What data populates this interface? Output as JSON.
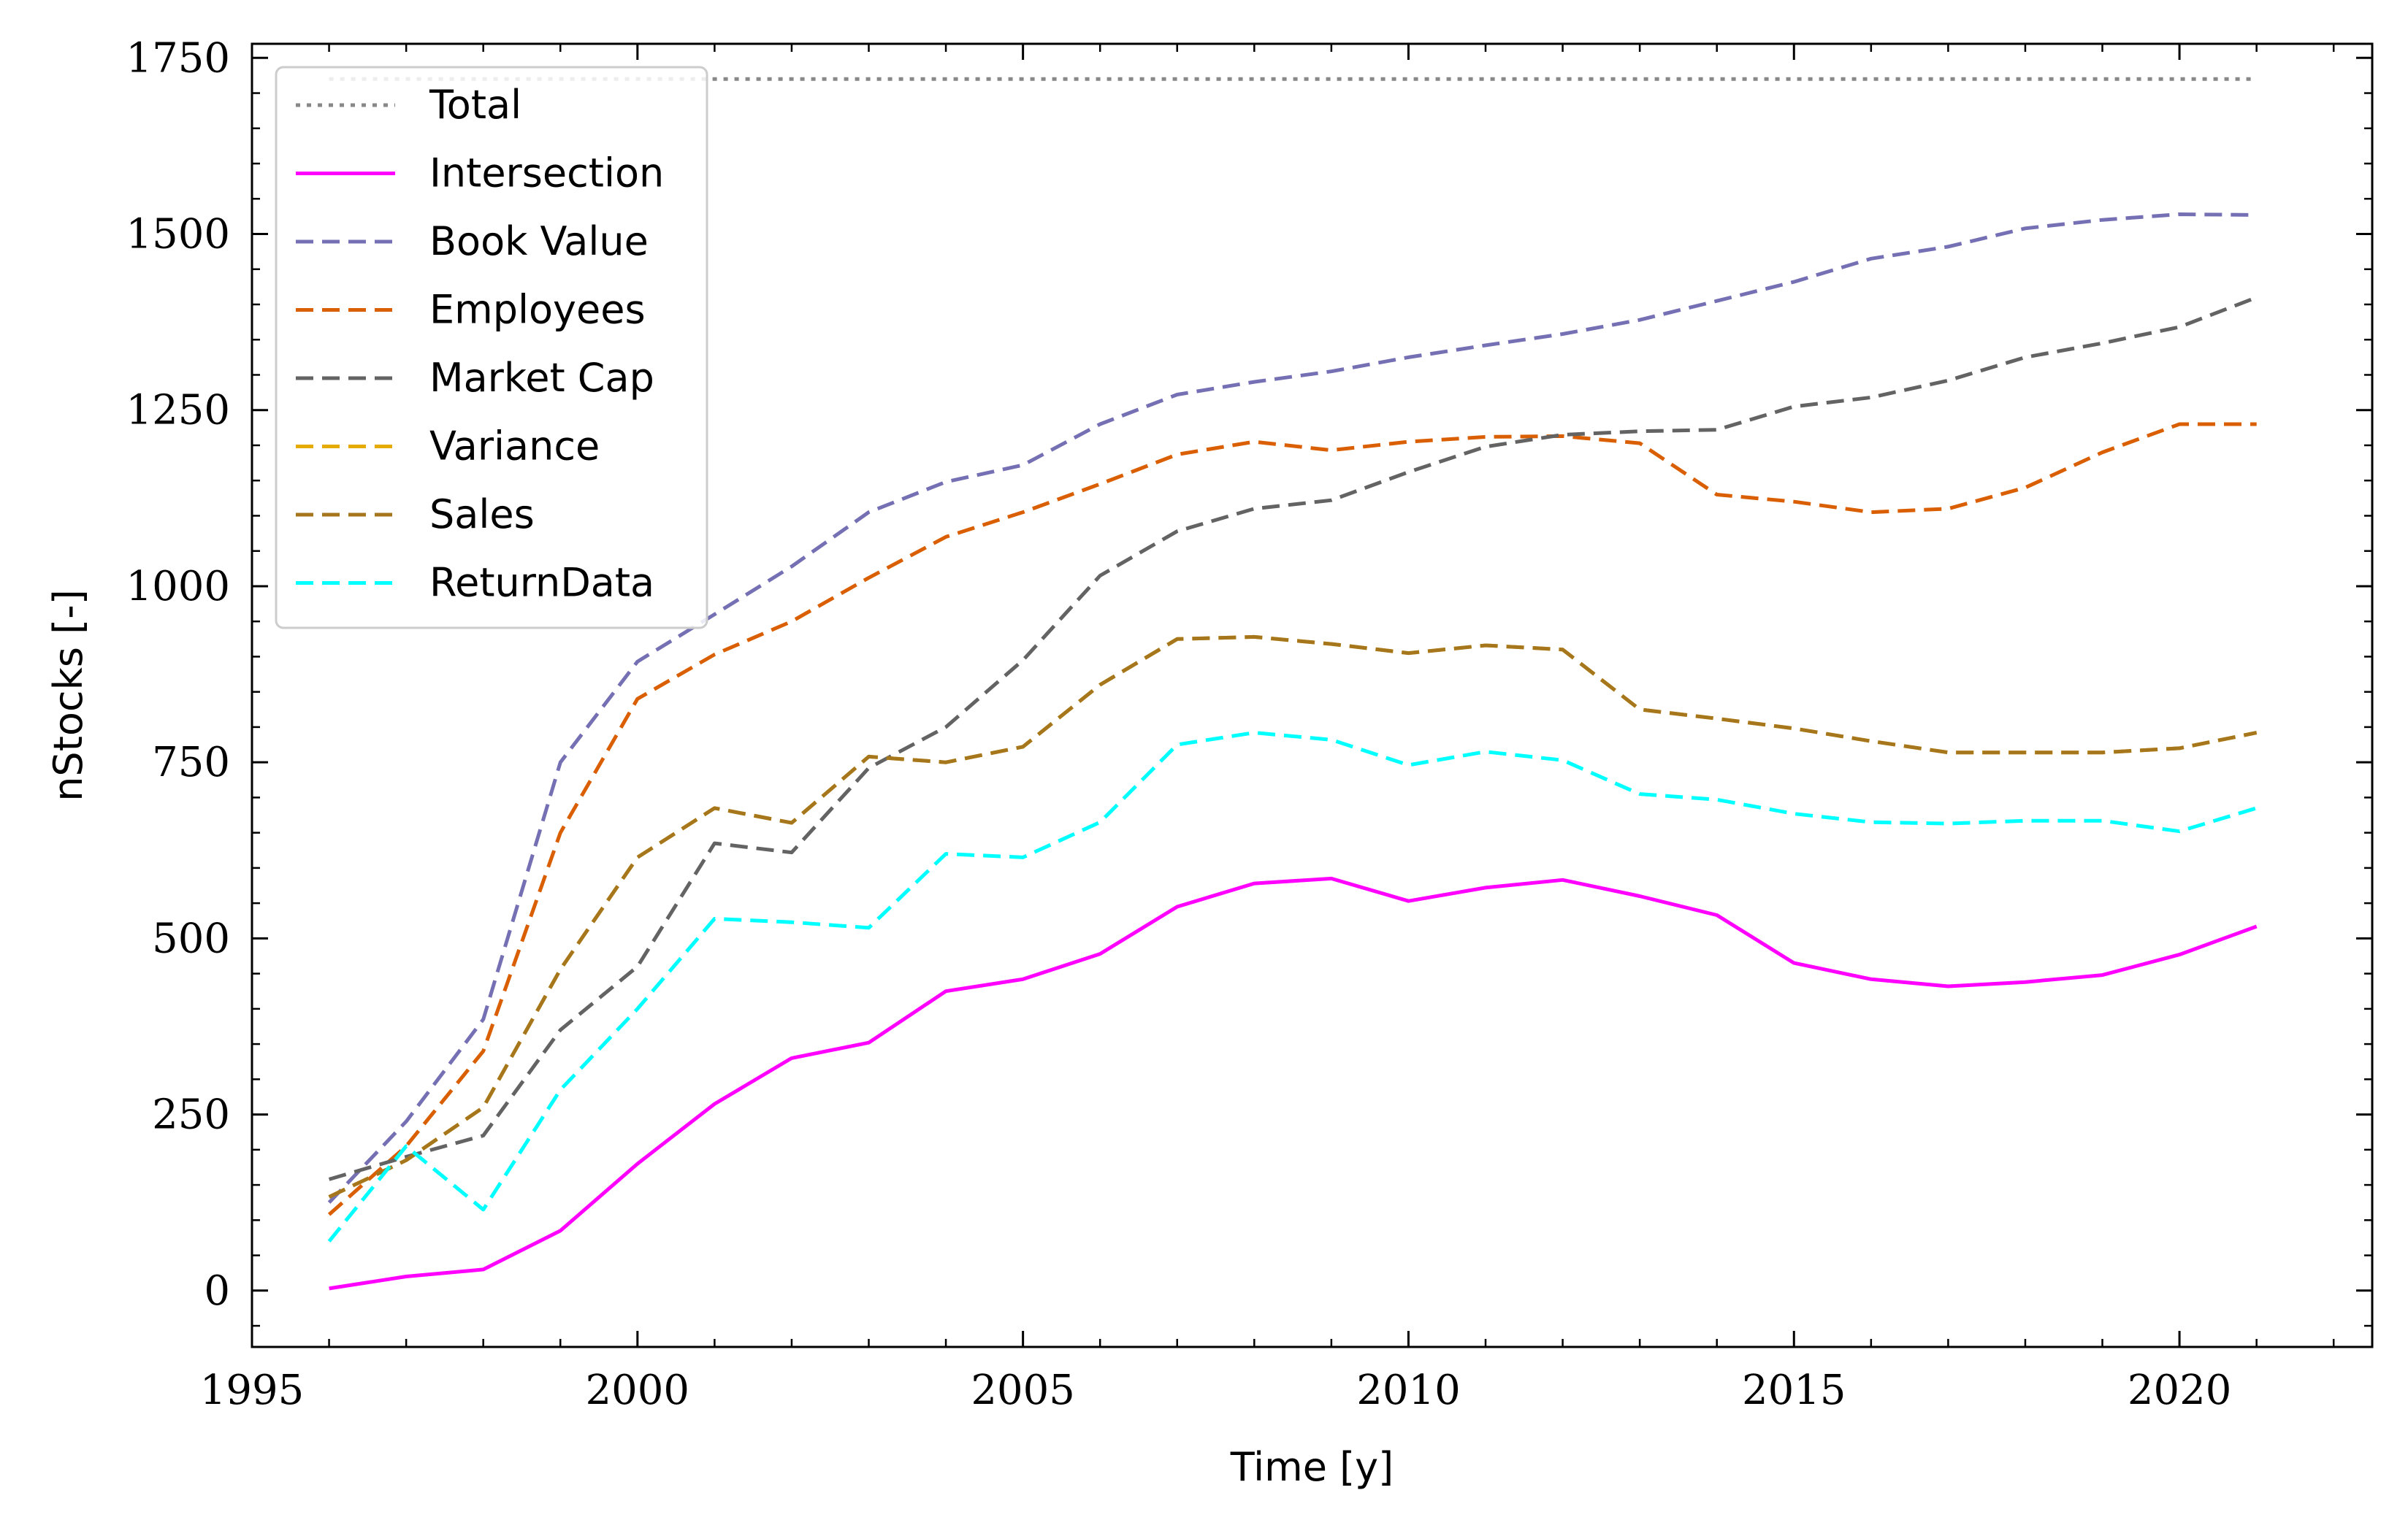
{
  "chart_data": {
    "type": "line",
    "title": "",
    "xlabel": "Time [y]",
    "ylabel": "nStocks [-]",
    "xlim": [
      1995,
      2022.5
    ],
    "ylim": [
      -80,
      1770
    ],
    "xticks": [
      1995,
      2000,
      2005,
      2010,
      2015,
      2020
    ],
    "yticks": [
      0,
      250,
      500,
      750,
      1000,
      1250,
      1500,
      1750
    ],
    "grid": false,
    "legend_position": "top-left",
    "x": [
      1996,
      1997,
      1998,
      1999,
      2000,
      2001,
      2002,
      2003,
      2004,
      2005,
      2006,
      2007,
      2008,
      2009,
      2010,
      2011,
      2012,
      2013,
      2014,
      2015,
      2016,
      2017,
      2018,
      2019,
      2020,
      2021
    ],
    "series": [
      {
        "name": "Total",
        "color": "#888888",
        "dash": "dotted",
        "values": [
          1720,
          1720,
          1720,
          1720,
          1720,
          1720,
          1720,
          1720,
          1720,
          1720,
          1720,
          1720,
          1720,
          1720,
          1720,
          1720,
          1720,
          1720,
          1720,
          1720,
          1720,
          1720,
          1720,
          1720,
          1720,
          1720
        ]
      },
      {
        "name": "Intersection",
        "color": "#ff00ff",
        "dash": "solid",
        "values": [
          3,
          20,
          30,
          85,
          180,
          265,
          330,
          352,
          425,
          442,
          478,
          545,
          578,
          585,
          553,
          572,
          583,
          560,
          533,
          465,
          442,
          432,
          438,
          448,
          477,
          517
        ]
      },
      {
        "name": "Book Value",
        "color": "#7570b3",
        "dash": "dashed",
        "values": [
          125,
          240,
          385,
          750,
          893,
          960,
          1028,
          1105,
          1148,
          1172,
          1230,
          1272,
          1290,
          1305,
          1325,
          1342,
          1358,
          1378,
          1405,
          1432,
          1465,
          1482,
          1508,
          1520,
          1528,
          1527
        ]
      },
      {
        "name": "Employees",
        "color": "#d95f02",
        "dash": "dashed",
        "values": [
          108,
          205,
          340,
          650,
          840,
          903,
          950,
          1012,
          1070,
          1105,
          1145,
          1187,
          1205,
          1193,
          1205,
          1212,
          1213,
          1203,
          1130,
          1120,
          1105,
          1110,
          1140,
          1190,
          1230,
          1230
        ]
      },
      {
        "name": "Market Cap",
        "color": "#636363",
        "dash": "dashed",
        "values": [
          158,
          190,
          220,
          370,
          460,
          635,
          622,
          742,
          800,
          895,
          1015,
          1078,
          1110,
          1122,
          1162,
          1198,
          1215,
          1220,
          1222,
          1255,
          1268,
          1292,
          1325,
          1345,
          1368,
          1410
        ]
      },
      {
        "name": "Variance",
        "color": "#e6ab02",
        "dash": "dashed",
        "values": [
          133,
          185,
          260,
          456,
          615,
          685,
          664,
          758,
          750,
          772,
          860,
          925,
          928,
          918,
          905,
          916,
          910,
          825,
          812,
          798,
          780,
          764,
          764,
          764,
          770,
          792
        ]
      },
      {
        "name": "Sales",
        "color": "#a6761d",
        "dash": "dashed",
        "values": [
          133,
          185,
          260,
          456,
          615,
          685,
          664,
          758,
          750,
          772,
          860,
          925,
          928,
          918,
          905,
          916,
          910,
          825,
          812,
          798,
          780,
          764,
          764,
          764,
          770,
          792
        ]
      },
      {
        "name": "ReturnData",
        "color": "#00ffff",
        "dash": "dashed",
        "values": [
          70,
          205,
          115,
          285,
          400,
          528,
          523,
          515,
          620,
          615,
          665,
          775,
          792,
          782,
          746,
          765,
          753,
          705,
          697,
          677,
          665,
          663,
          667,
          667,
          652,
          685
        ]
      }
    ]
  }
}
